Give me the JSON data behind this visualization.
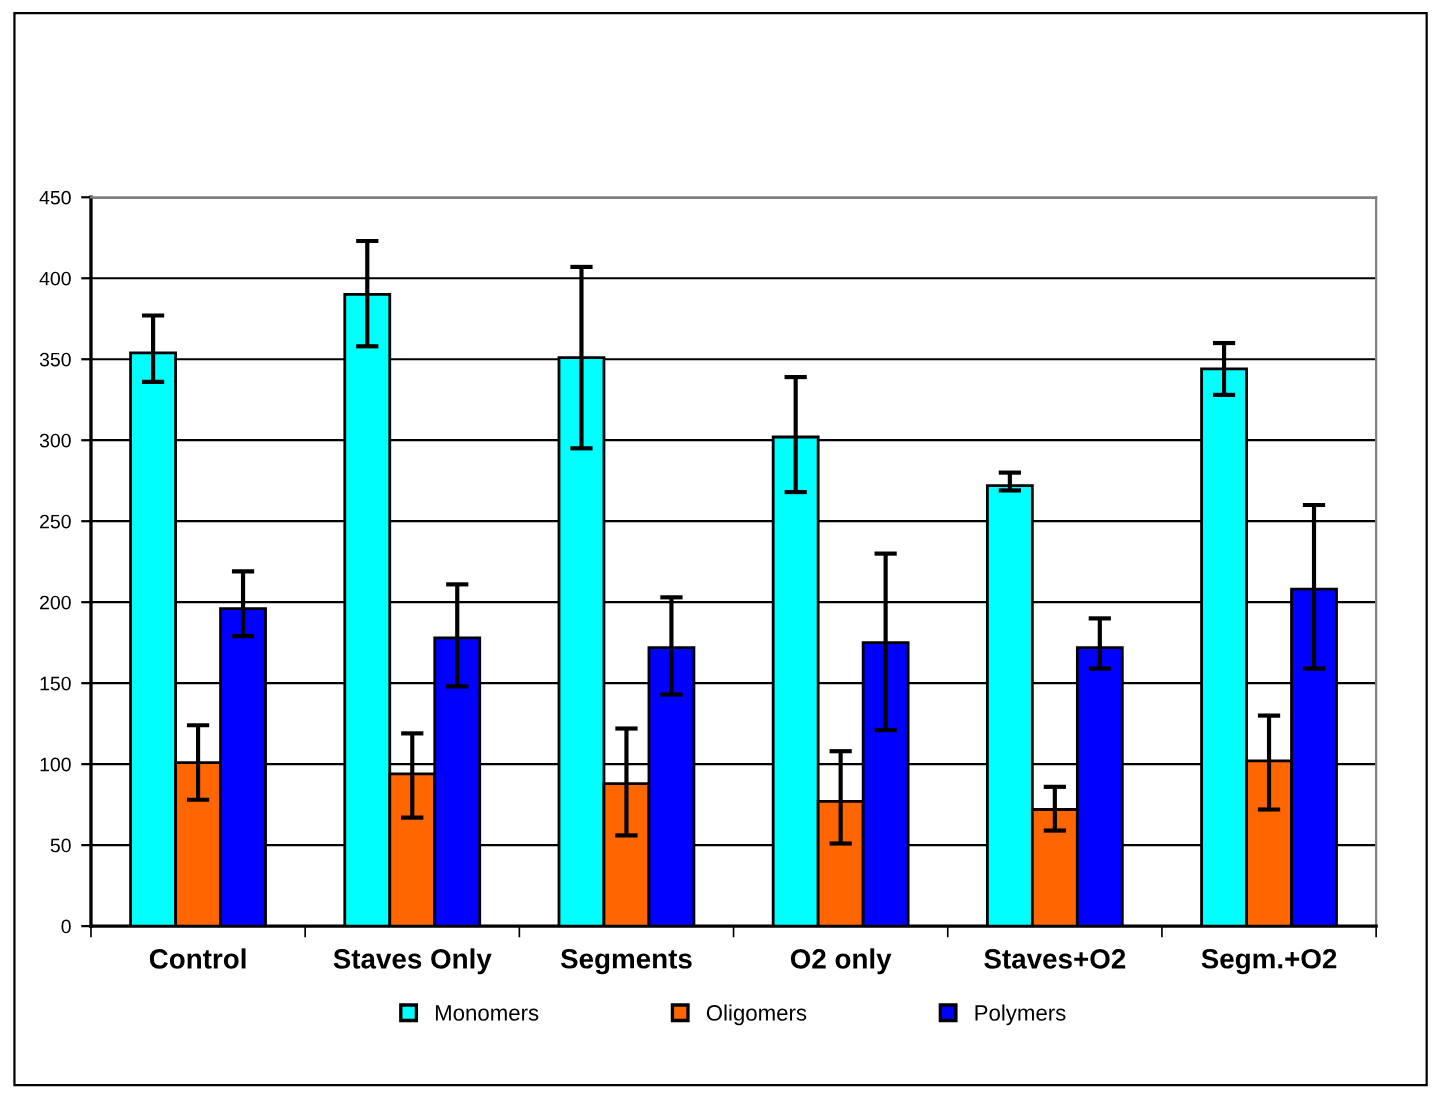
{
  "chart_data": {
    "type": "bar",
    "categories": [
      "Control",
      "Staves Only",
      "Segments",
      "O2 only",
      "Staves+O2",
      "Segm.+O2"
    ],
    "series": [
      {
        "name": "Monomers",
        "color": "#00ffff",
        "values": [
          354,
          390,
          351,
          302,
          272,
          344
        ],
        "errors": [
          [
            336,
            377
          ],
          [
            358,
            423
          ],
          [
            295,
            407
          ],
          [
            268,
            339
          ],
          [
            269,
            280
          ],
          [
            328,
            360
          ]
        ]
      },
      {
        "name": "Oligomers",
        "color": "#ff6600",
        "values": [
          101,
          94,
          88,
          77,
          72,
          102
        ],
        "errors": [
          [
            78,
            124
          ],
          [
            67,
            119
          ],
          [
            56,
            122
          ],
          [
            51,
            108
          ],
          [
            59,
            86
          ],
          [
            72,
            130
          ]
        ]
      },
      {
        "name": "Polymers",
        "color": "#0000ff",
        "values": [
          196,
          178,
          172,
          175,
          172,
          208
        ],
        "errors": [
          [
            179,
            219
          ],
          [
            148,
            211
          ],
          [
            143,
            203
          ],
          [
            121,
            230
          ],
          [
            159,
            190
          ],
          [
            159,
            260
          ]
        ]
      }
    ],
    "ylim": [
      0,
      450
    ],
    "yticks": [
      0,
      50,
      100,
      150,
      200,
      250,
      300,
      350,
      400,
      450
    ],
    "grid": "y",
    "legend": "bottom"
  }
}
